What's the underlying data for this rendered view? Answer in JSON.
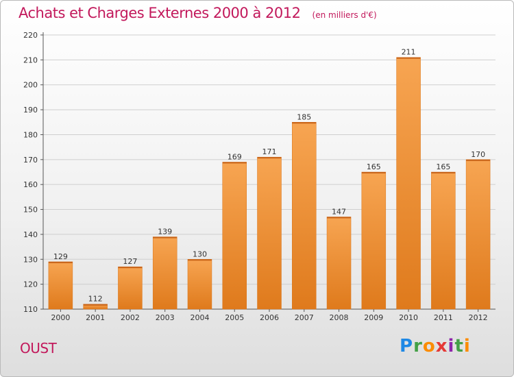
{
  "header": {
    "title": "Achats et Charges Externes 2000 à 2012",
    "unit": "(en milliers d'€)"
  },
  "commune": "OUST",
  "brand": {
    "letters": [
      "P",
      "r",
      "o",
      "x",
      "i",
      "t",
      "i"
    ],
    "colors": [
      "#1e88e5",
      "#43a047",
      "#fb8c00",
      "#e53935",
      "#8e24aa",
      "#43a047",
      "#fb8c00"
    ]
  },
  "chart_data": {
    "type": "bar",
    "categories": [
      "2000",
      "2001",
      "2002",
      "2003",
      "2004",
      "2005",
      "2006",
      "2007",
      "2008",
      "2009",
      "2010",
      "2011",
      "2012"
    ],
    "values": [
      129,
      112,
      127,
      139,
      130,
      169,
      171,
      185,
      147,
      165,
      211,
      165,
      170
    ],
    "ylim": [
      110,
      220
    ],
    "yticks": [
      110,
      120,
      130,
      140,
      150,
      160,
      170,
      180,
      190,
      200,
      210,
      220
    ],
    "grid": "horizontal",
    "bar_color": "#f39c3f",
    "bar_color_dark": "#e07b1a"
  }
}
